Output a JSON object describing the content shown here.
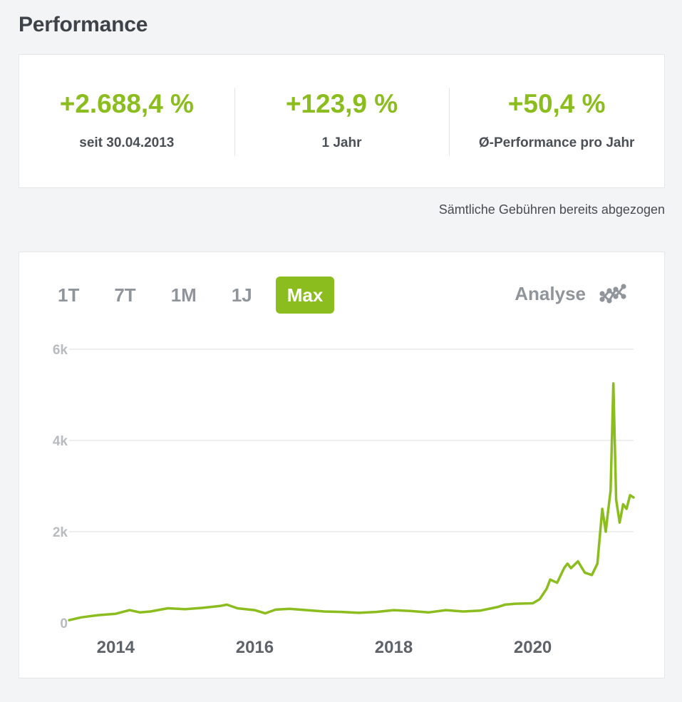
{
  "page": {
    "title": "Performance"
  },
  "stats": [
    {
      "value": "+2.688,4 %",
      "label": "seit 30.04.2013"
    },
    {
      "value": "+123,9 %",
      "label": "1 Jahr"
    },
    {
      "value": "+50,4 %",
      "label": "Ø-Performance pro Jahr"
    }
  ],
  "fees_note": "Sämtliche Gebühren bereits abgezogen",
  "range_tabs": [
    {
      "label": "1T",
      "active": false
    },
    {
      "label": "7T",
      "active": false
    },
    {
      "label": "1M",
      "active": false
    },
    {
      "label": "1J",
      "active": false
    },
    {
      "label": "Max",
      "active": true
    }
  ],
  "analyse": {
    "label": "Analyse",
    "icon": "chart-analysis-icon"
  },
  "colors": {
    "accent": "#8bbd1e",
    "grid": "#e1e4e6",
    "axis_text": "#b7bcc0"
  },
  "chart_data": {
    "type": "line",
    "title": "",
    "xlabel": "",
    "ylabel": "",
    "x_tick_labels": [
      "2014",
      "2016",
      "2018",
      "2020"
    ],
    "x_ticks": [
      2014,
      2016,
      2018,
      2020
    ],
    "y_tick_labels": [
      "0",
      "2k",
      "4k",
      "6k"
    ],
    "y_ticks": [
      0,
      2000,
      4000,
      6000
    ],
    "xlim": [
      2013.33,
      2021.45
    ],
    "ylim": [
      0,
      6000
    ],
    "grid": true,
    "series": [
      {
        "color": "#8bbd1e",
        "x": [
          2013.33,
          2013.5,
          2013.75,
          2014.0,
          2014.2,
          2014.35,
          2014.5,
          2014.75,
          2015.0,
          2015.25,
          2015.5,
          2015.6,
          2015.75,
          2016.0,
          2016.15,
          2016.3,
          2016.5,
          2016.75,
          2017.0,
          2017.25,
          2017.5,
          2017.75,
          2018.0,
          2018.25,
          2018.5,
          2018.75,
          2019.0,
          2019.25,
          2019.5,
          2019.6,
          2019.75,
          2020.0,
          2020.1,
          2020.2,
          2020.25,
          2020.35,
          2020.45,
          2020.5,
          2020.55,
          2020.65,
          2020.75,
          2020.85,
          2020.93,
          2021.0,
          2021.05,
          2021.08,
          2021.12,
          2021.16,
          2021.2,
          2021.25,
          2021.3,
          2021.35,
          2021.4,
          2021.45
        ],
        "values": [
          60,
          120,
          170,
          200,
          280,
          230,
          250,
          320,
          300,
          330,
          370,
          400,
          320,
          280,
          210,
          290,
          310,
          280,
          250,
          240,
          220,
          240,
          280,
          260,
          230,
          280,
          250,
          270,
          350,
          400,
          420,
          430,
          520,
          750,
          950,
          880,
          1200,
          1300,
          1200,
          1350,
          1100,
          1050,
          1300,
          2500,
          2000,
          2400,
          2900,
          5250,
          2700,
          2200,
          2600,
          2500,
          2800,
          2750
        ]
      }
    ]
  }
}
